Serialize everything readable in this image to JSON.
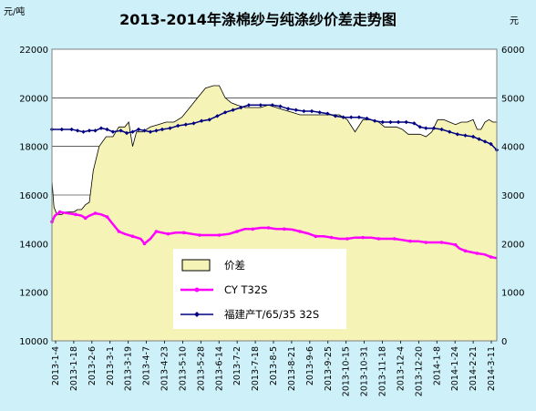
{
  "chart_data": {
    "type": "line",
    "title": "2013-2014年涤棉纱与纯涤纱价差走势图",
    "y_left_unit": "元/吨",
    "y_right_unit": "元",
    "y_left_range": [
      10000,
      22000
    ],
    "y_left_ticks": [
      "10000",
      "12000",
      "14000",
      "16000",
      "18000",
      "20000",
      "22000"
    ],
    "y_right_range": [
      0,
      6000
    ],
    "y_right_ticks": [
      "0",
      "1000",
      "2000",
      "3000",
      "4000",
      "5000",
      "6000"
    ],
    "x_ticks": [
      "2013-1-4",
      "2013-1-18",
      "2013-2-6",
      "2013-3-1",
      "2013-3-19",
      "2013-4-7",
      "2013-4-23",
      "2013-5-10",
      "2013-5-28",
      "2013-6-14",
      "2013-7-2",
      "2013-7-18",
      "2013-8-5",
      "2013-8-21",
      "2013-9-6",
      "2013-9-25",
      "2013-10-15",
      "2013-10-31",
      "2013-11-18",
      "2013-12-4",
      "2013-12-20",
      "2014-1-8",
      "2014-1-24",
      "2014-2-21",
      "2014-3-11"
    ],
    "grid": "horizontal",
    "legend_position": "center",
    "series": [
      {
        "name": "价差",
        "axis": "right",
        "style": "area",
        "color": "#f5f3b5",
        "points": [
          [
            0,
            3300
          ],
          [
            2,
            2750
          ],
          [
            5,
            2600
          ],
          [
            10,
            2600
          ],
          [
            14,
            2650
          ],
          [
            18,
            2650
          ],
          [
            22,
            2650
          ],
          [
            26,
            2700
          ],
          [
            30,
            2700
          ],
          [
            34,
            2800
          ],
          [
            38,
            2850
          ],
          [
            42,
            3500
          ],
          [
            48,
            4000
          ],
          [
            55,
            4200
          ],
          [
            62,
            4200
          ],
          [
            68,
            4400
          ],
          [
            74,
            4400
          ],
          [
            78,
            4500
          ],
          [
            82,
            4000
          ],
          [
            86,
            4300
          ],
          [
            92,
            4300
          ],
          [
            100,
            4400
          ],
          [
            108,
            4450
          ],
          [
            116,
            4500
          ],
          [
            124,
            4500
          ],
          [
            132,
            4600
          ],
          [
            140,
            4800
          ],
          [
            148,
            5000
          ],
          [
            156,
            5200
          ],
          [
            164,
            5250
          ],
          [
            170,
            5250
          ],
          [
            176,
            5000
          ],
          [
            182,
            4900
          ],
          [
            188,
            4850
          ],
          [
            196,
            4800
          ],
          [
            204,
            4800
          ],
          [
            212,
            4800
          ],
          [
            220,
            4850
          ],
          [
            228,
            4800
          ],
          [
            236,
            4750
          ],
          [
            244,
            4700
          ],
          [
            252,
            4650
          ],
          [
            260,
            4650
          ],
          [
            268,
            4650
          ],
          [
            276,
            4650
          ],
          [
            284,
            4650
          ],
          [
            292,
            4650
          ],
          [
            300,
            4550
          ],
          [
            308,
            4300
          ],
          [
            316,
            4550
          ],
          [
            324,
            4550
          ],
          [
            332,
            4500
          ],
          [
            338,
            4400
          ],
          [
            344,
            4400
          ],
          [
            350,
            4400
          ],
          [
            356,
            4350
          ],
          [
            362,
            4250
          ],
          [
            368,
            4250
          ],
          [
            374,
            4250
          ],
          [
            380,
            4200
          ],
          [
            386,
            4300
          ],
          [
            392,
            4550
          ],
          [
            398,
            4550
          ],
          [
            404,
            4500
          ],
          [
            410,
            4450
          ],
          [
            416,
            4500
          ],
          [
            422,
            4500
          ],
          [
            428,
            4550
          ],
          [
            432,
            4350
          ],
          [
            436,
            4350
          ],
          [
            440,
            4500
          ],
          [
            444,
            4550
          ],
          [
            448,
            4500
          ],
          [
            452,
            4500
          ]
        ]
      },
      {
        "name": "CY T32S",
        "axis": "left",
        "style": "line",
        "color": "#ff00ff",
        "points": [
          [
            0,
            14900
          ],
          [
            3,
            15150
          ],
          [
            8,
            15300
          ],
          [
            16,
            15250
          ],
          [
            24,
            15200
          ],
          [
            30,
            15150
          ],
          [
            34,
            15050
          ],
          [
            38,
            15150
          ],
          [
            44,
            15250
          ],
          [
            50,
            15200
          ],
          [
            56,
            15100
          ],
          [
            62,
            14800
          ],
          [
            68,
            14500
          ],
          [
            74,
            14400
          ],
          [
            82,
            14300
          ],
          [
            90,
            14200
          ],
          [
            94,
            14000
          ],
          [
            100,
            14200
          ],
          [
            106,
            14500
          ],
          [
            112,
            14450
          ],
          [
            118,
            14400
          ],
          [
            126,
            14450
          ],
          [
            134,
            14450
          ],
          [
            142,
            14400
          ],
          [
            150,
            14350
          ],
          [
            160,
            14350
          ],
          [
            170,
            14350
          ],
          [
            180,
            14400
          ],
          [
            188,
            14500
          ],
          [
            196,
            14600
          ],
          [
            204,
            14600
          ],
          [
            212,
            14650
          ],
          [
            220,
            14650
          ],
          [
            228,
            14600
          ],
          [
            236,
            14600
          ],
          [
            244,
            14580
          ],
          [
            252,
            14500
          ],
          [
            260,
            14420
          ],
          [
            268,
            14300
          ],
          [
            276,
            14300
          ],
          [
            284,
            14250
          ],
          [
            292,
            14200
          ],
          [
            300,
            14200
          ],
          [
            308,
            14250
          ],
          [
            316,
            14250
          ],
          [
            324,
            14250
          ],
          [
            332,
            14200
          ],
          [
            340,
            14200
          ],
          [
            348,
            14200
          ],
          [
            356,
            14150
          ],
          [
            364,
            14100
          ],
          [
            372,
            14100
          ],
          [
            380,
            14050
          ],
          [
            388,
            14050
          ],
          [
            396,
            14050
          ],
          [
            404,
            14000
          ],
          [
            410,
            13950
          ],
          [
            414,
            13800
          ],
          [
            420,
            13700
          ],
          [
            426,
            13650
          ],
          [
            432,
            13600
          ],
          [
            440,
            13550
          ],
          [
            446,
            13450
          ],
          [
            452,
            13400
          ]
        ]
      },
      {
        "name": "福建产T/65/35 32S",
        "axis": "left",
        "style": "line-marker",
        "color": "#000080",
        "points": [
          [
            0,
            18700
          ],
          [
            10,
            18700
          ],
          [
            20,
            18700
          ],
          [
            26,
            18650
          ],
          [
            32,
            18600
          ],
          [
            38,
            18650
          ],
          [
            44,
            18650
          ],
          [
            50,
            18750
          ],
          [
            56,
            18700
          ],
          [
            62,
            18600
          ],
          [
            70,
            18650
          ],
          [
            76,
            18550
          ],
          [
            82,
            18600
          ],
          [
            88,
            18700
          ],
          [
            94,
            18650
          ],
          [
            100,
            18600
          ],
          [
            106,
            18650
          ],
          [
            112,
            18700
          ],
          [
            120,
            18750
          ],
          [
            128,
            18850
          ],
          [
            136,
            18900
          ],
          [
            144,
            18950
          ],
          [
            152,
            19050
          ],
          [
            160,
            19100
          ],
          [
            168,
            19250
          ],
          [
            176,
            19400
          ],
          [
            184,
            19500
          ],
          [
            192,
            19600
          ],
          [
            200,
            19700
          ],
          [
            212,
            19700
          ],
          [
            224,
            19700
          ],
          [
            232,
            19650
          ],
          [
            240,
            19550
          ],
          [
            248,
            19500
          ],
          [
            256,
            19450
          ],
          [
            264,
            19450
          ],
          [
            272,
            19400
          ],
          [
            280,
            19350
          ],
          [
            288,
            19250
          ],
          [
            296,
            19200
          ],
          [
            304,
            19200
          ],
          [
            312,
            19200
          ],
          [
            320,
            19150
          ],
          [
            328,
            19050
          ],
          [
            336,
            19000
          ],
          [
            344,
            19000
          ],
          [
            352,
            19000
          ],
          [
            360,
            19000
          ],
          [
            368,
            18950
          ],
          [
            374,
            18800
          ],
          [
            380,
            18750
          ],
          [
            388,
            18750
          ],
          [
            396,
            18700
          ],
          [
            404,
            18600
          ],
          [
            412,
            18500
          ],
          [
            420,
            18450
          ],
          [
            428,
            18400
          ],
          [
            434,
            18300
          ],
          [
            440,
            18200
          ],
          [
            446,
            18100
          ],
          [
            452,
            17850
          ]
        ]
      }
    ]
  }
}
